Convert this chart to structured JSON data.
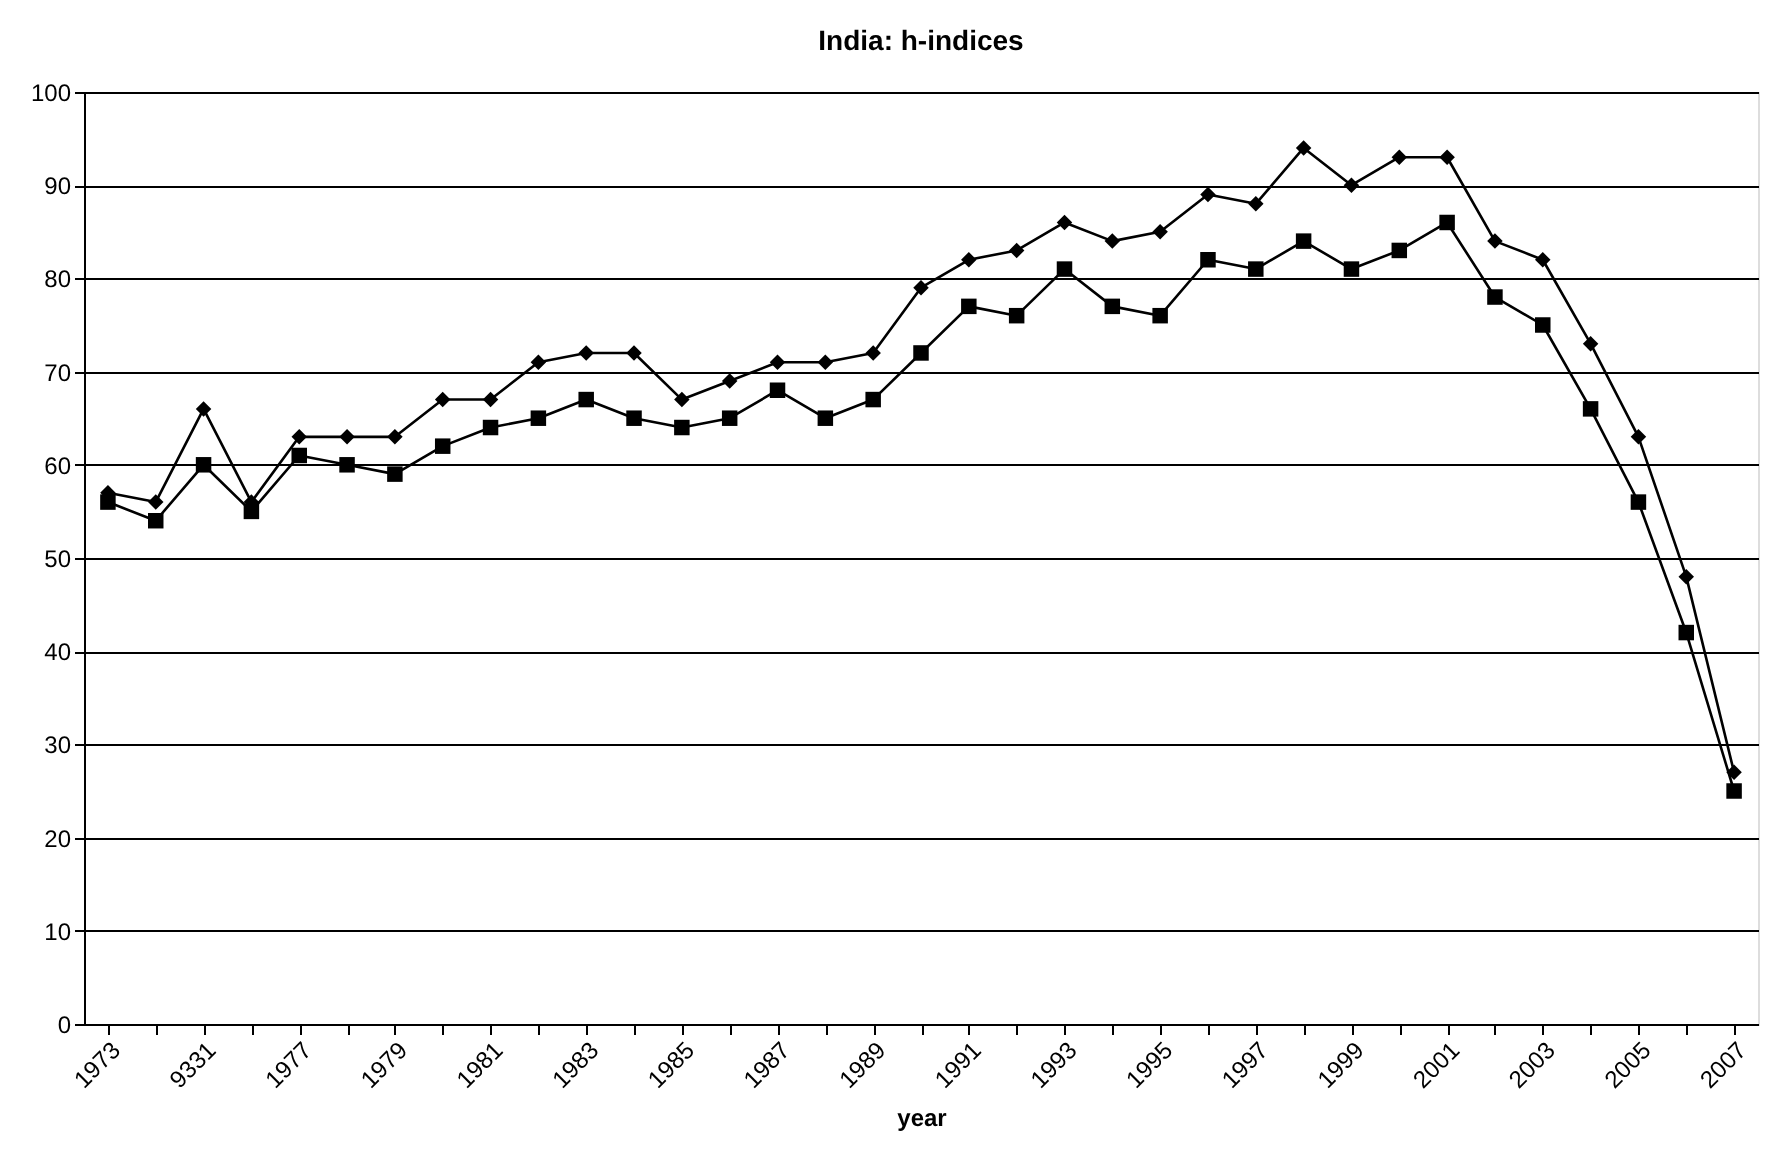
{
  "chart_data": {
    "type": "line",
    "title": "India: h-indices",
    "xlabel": "year",
    "categories": [
      "1973",
      null,
      "9331",
      null,
      "1977",
      null,
      "1979",
      null,
      "1981",
      null,
      "1983",
      null,
      "1985",
      null,
      "1987",
      null,
      "1989",
      null,
      "1991",
      null,
      "1993",
      null,
      "1995",
      null,
      "1997",
      null,
      "1999",
      null,
      "2001",
      null,
      "2003",
      null,
      "2005",
      null,
      "2007"
    ],
    "series": [
      {
        "color": "#000000",
        "marker": "diamond",
        "values": [
          57,
          56,
          66,
          56,
          63,
          63,
          63,
          67,
          67,
          71,
          72,
          72,
          67,
          69,
          71,
          71,
          72,
          79,
          82,
          83,
          86,
          84,
          85,
          89,
          88,
          94,
          90,
          93,
          93,
          84,
          82,
          73,
          63,
          48,
          27
        ]
      },
      {
        "color": "#000000",
        "marker": "square",
        "values": [
          56,
          54,
          60,
          55,
          61,
          60,
          59,
          62,
          64,
          65,
          67,
          65,
          64,
          65,
          68,
          65,
          67,
          72,
          77,
          76,
          81,
          77,
          76,
          82,
          81,
          84,
          81,
          83,
          86,
          78,
          75,
          66,
          56,
          42,
          25
        ]
      }
    ],
    "ylim": [
      0,
      100
    ],
    "yticks": [
      0,
      10,
      20,
      30,
      40,
      50,
      60,
      70,
      80,
      90,
      100
    ],
    "grid": "y",
    "line_style": "solid"
  }
}
